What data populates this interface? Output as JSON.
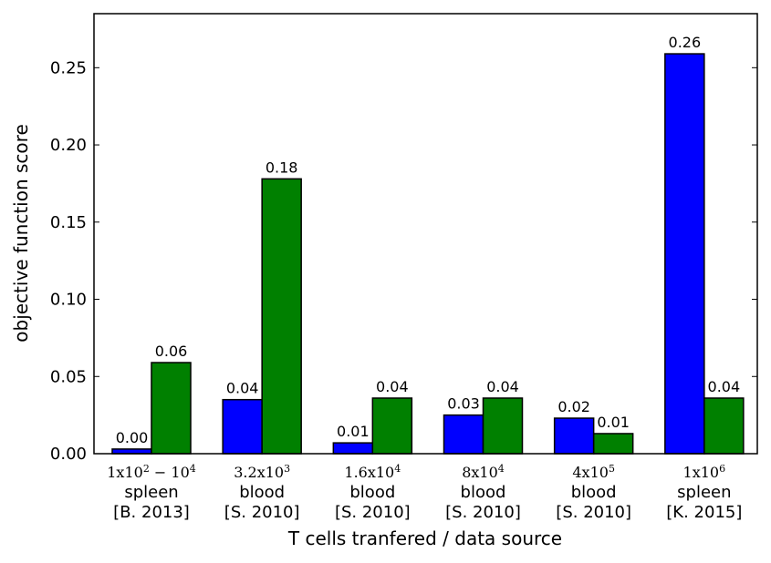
{
  "chart_data": {
    "type": "bar",
    "xlabel": "T cells tranfered / data source",
    "ylabel": "objective function score",
    "ylim": [
      0,
      0.285
    ],
    "yticks": [
      "0.00",
      "0.05",
      "0.10",
      "0.15",
      "0.20",
      "0.25"
    ],
    "grid": false,
    "categories": [
      {
        "dose_math": "1x10^2 − 10^4",
        "tissue": "spleen",
        "source": "[B. 2013]"
      },
      {
        "dose_math": "3.2x10^3",
        "tissue": "blood",
        "source": "[S. 2010]"
      },
      {
        "dose_math": "1.6x10^4",
        "tissue": "blood",
        "source": "[S. 2010]"
      },
      {
        "dose_math": "8x10^4",
        "tissue": "blood",
        "source": "[S. 2010]"
      },
      {
        "dose_math": "4x10^5",
        "tissue": "blood",
        "source": "[S. 2010]"
      },
      {
        "dose_math": "1x10^6",
        "tissue": "spleen",
        "source": "[K. 2015]"
      }
    ],
    "series": [
      {
        "color": "#0000ff",
        "values": [
          0.003,
          0.035,
          0.007,
          0.025,
          0.023,
          0.259
        ],
        "labels": [
          "0.00",
          "0.04",
          "0.01",
          "0.03",
          "0.02",
          "0.26"
        ]
      },
      {
        "color": "#008000",
        "values": [
          0.059,
          0.178,
          0.036,
          0.036,
          0.013,
          0.036
        ],
        "labels": [
          "0.06",
          "0.18",
          "0.04",
          "0.04",
          "0.01",
          "0.04"
        ]
      }
    ]
  }
}
